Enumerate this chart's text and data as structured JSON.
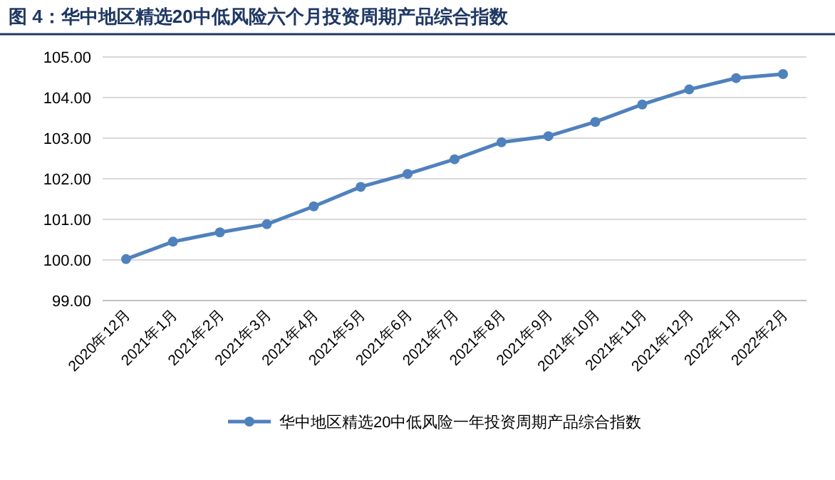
{
  "chart_data": {
    "type": "line",
    "title": "图 4：华中地区精选20中低风险六个月投资周期产品综合指数",
    "categories": [
      "2020年12月",
      "2021年1月",
      "2021年2月",
      "2021年3月",
      "2021年4月",
      "2021年5月",
      "2021年6月",
      "2021年7月",
      "2021年8月",
      "2021年9月",
      "2021年10月",
      "2021年11月",
      "2021年12月",
      "2022年1月",
      "2022年2月"
    ],
    "series": [
      {
        "name": "华中地区精选20中低风险一年投资周期产品综合指数",
        "color": "#4f81bd",
        "values": [
          100.02,
          100.45,
          100.68,
          100.88,
          101.32,
          101.8,
          102.12,
          102.48,
          102.9,
          103.05,
          103.4,
          103.83,
          104.2,
          104.48,
          104.58
        ]
      }
    ],
    "ylim": [
      99,
      105
    ],
    "yticks": [
      {
        "value": 99,
        "label": "99.00"
      },
      {
        "value": 100,
        "label": "100.00"
      },
      {
        "value": 101,
        "label": "101.00"
      },
      {
        "value": 102,
        "label": "102.00"
      },
      {
        "value": 103,
        "label": "103.00"
      },
      {
        "value": 104,
        "label": "104.00"
      },
      {
        "value": 105,
        "label": "105.00"
      }
    ],
    "grid": "y",
    "legend": "bottom",
    "marker": "circle",
    "line_style": "solid"
  }
}
